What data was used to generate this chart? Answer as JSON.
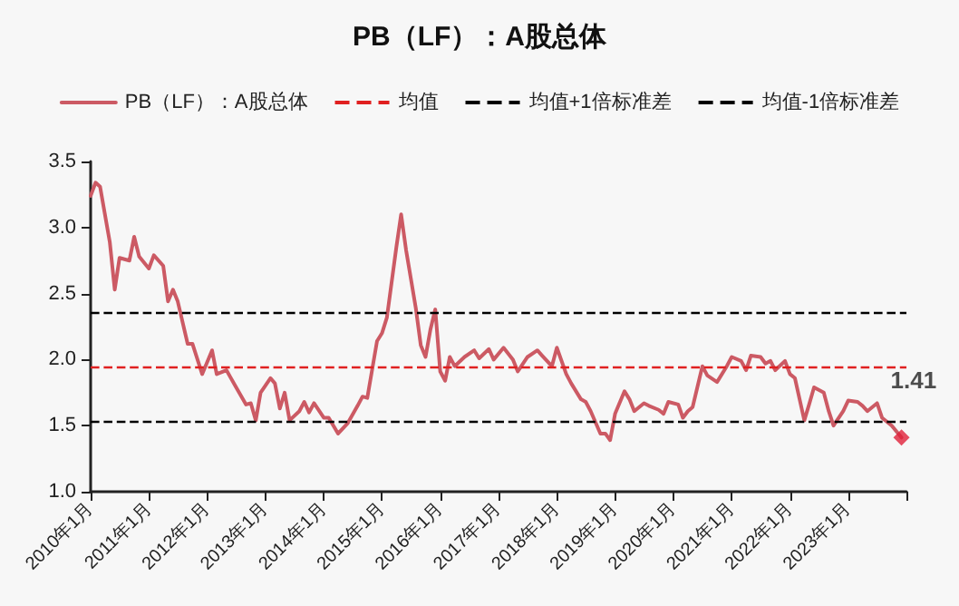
{
  "chart_data": {
    "type": "line",
    "title": "PB（LF）：A股总体",
    "series": [
      {
        "name": "PB（LF）：A股总体",
        "color": "#cc5a64",
        "line_style": "solid",
        "marker": "none",
        "x": [
          "2010-01",
          "2010-02",
          "2010-03",
          "2010-05",
          "2010-06",
          "2010-07",
          "2010-09",
          "2010-10",
          "2010-11",
          "2011-01",
          "2011-02",
          "2011-04",
          "2011-05",
          "2011-06",
          "2011-07",
          "2011-09",
          "2011-10",
          "2011-12",
          "2012-02",
          "2012-03",
          "2012-05",
          "2012-07",
          "2012-09",
          "2012-10",
          "2012-11",
          "2012-12",
          "2013-02",
          "2013-03",
          "2013-04",
          "2013-05",
          "2013-06",
          "2013-08",
          "2013-09",
          "2013-10",
          "2013-11",
          "2014-01",
          "2014-02",
          "2014-04",
          "2014-06",
          "2014-08",
          "2014-09",
          "2014-10",
          "2014-12",
          "2015-01",
          "2015-02",
          "2015-04",
          "2015-05",
          "2015-06",
          "2015-08",
          "2015-09",
          "2015-10",
          "2015-11",
          "2015-12",
          "2016-01",
          "2016-02",
          "2016-03",
          "2016-04",
          "2016-06",
          "2016-08",
          "2016-09",
          "2016-11",
          "2016-12",
          "2017-02",
          "2017-04",
          "2017-05",
          "2017-07",
          "2017-09",
          "2017-10",
          "2017-12",
          "2018-01",
          "2018-03",
          "2018-04",
          "2018-06",
          "2018-07",
          "2018-08",
          "2018-10",
          "2018-11",
          "2018-12",
          "2019-01",
          "2019-03",
          "2019-04",
          "2019-05",
          "2019-07",
          "2019-08",
          "2019-10",
          "2019-11",
          "2019-12",
          "2020-02",
          "2020-03",
          "2020-04",
          "2020-05",
          "2020-07",
          "2020-08",
          "2020-10",
          "2020-12",
          "2021-01",
          "2021-03",
          "2021-04",
          "2021-05",
          "2021-07",
          "2021-08",
          "2021-09",
          "2021-10",
          "2021-12",
          "2022-01",
          "2022-02",
          "2022-04",
          "2022-05",
          "2022-06",
          "2022-08",
          "2022-09",
          "2022-10",
          "2022-12",
          "2023-01",
          "2023-03",
          "2023-04",
          "2023-05",
          "2023-07",
          "2023-08",
          "2023-10",
          "2023-12"
        ],
        "values": [
          3.24,
          3.34,
          3.31,
          2.89,
          2.53,
          2.77,
          2.75,
          2.93,
          2.78,
          2.69,
          2.79,
          2.71,
          2.44,
          2.53,
          2.44,
          2.12,
          2.12,
          1.89,
          2.07,
          1.89,
          1.92,
          1.79,
          1.66,
          1.67,
          1.54,
          1.75,
          1.86,
          1.82,
          1.63,
          1.75,
          1.54,
          1.61,
          1.68,
          1.6,
          1.67,
          1.56,
          1.56,
          1.44,
          1.52,
          1.65,
          1.72,
          1.71,
          2.14,
          2.2,
          2.32,
          2.85,
          3.1,
          2.83,
          2.39,
          2.11,
          2.02,
          2.23,
          2.38,
          1.91,
          1.84,
          2.02,
          1.95,
          2.02,
          2.07,
          2.01,
          2.08,
          2.0,
          2.09,
          2.0,
          1.91,
          2.02,
          2.07,
          2.03,
          1.95,
          2.09,
          1.89,
          1.82,
          1.7,
          1.68,
          1.61,
          1.44,
          1.44,
          1.39,
          1.59,
          1.76,
          1.7,
          1.61,
          1.67,
          1.65,
          1.62,
          1.59,
          1.68,
          1.66,
          1.56,
          1.61,
          1.64,
          1.95,
          1.88,
          1.83,
          1.95,
          2.02,
          1.99,
          1.92,
          2.03,
          2.02,
          1.97,
          1.99,
          1.92,
          1.99,
          1.89,
          1.86,
          1.54,
          1.66,
          1.79,
          1.75,
          1.61,
          1.5,
          1.61,
          1.69,
          1.68,
          1.65,
          1.61,
          1.67,
          1.56,
          1.5,
          1.41
        ]
      },
      {
        "type": "scatter",
        "color": "#e0203a",
        "marker": "diamond",
        "x": [
          "2023-12"
        ],
        "values": [
          1.41
        ]
      }
    ],
    "ref_lines": [
      {
        "axis": "y",
        "value": 1.94,
        "label": "均值",
        "color": "#e02020",
        "line_style": "dashed"
      },
      {
        "axis": "y",
        "value": 2.36,
        "label": "均值+1倍标准差",
        "color": "#000000",
        "line_style": "dashed"
      },
      {
        "axis": "y",
        "value": 1.53,
        "label": "均值-1倍标准差",
        "color": "#000000",
        "line_style": "dashed"
      }
    ],
    "annotations": [
      {
        "text": "1.41",
        "x": "2023-12",
        "y": 1.41
      }
    ],
    "xlim": [
      "2010-01",
      "2024-01"
    ],
    "xticks": [
      {
        "value": "2010-01",
        "label": "2010年1月"
      },
      {
        "value": "2011-01",
        "label": "2011年1月"
      },
      {
        "value": "2012-01",
        "label": "2012年1月"
      },
      {
        "value": "2013-01",
        "label": "2013年1月"
      },
      {
        "value": "2014-01",
        "label": "2014年1月"
      },
      {
        "value": "2015-01",
        "label": "2015年1月"
      },
      {
        "value": "2016-01",
        "label": "2016年1月"
      },
      {
        "value": "2017-01",
        "label": "2017年1月"
      },
      {
        "value": "2018-01",
        "label": "2018年1月"
      },
      {
        "value": "2019-01",
        "label": "2019年1月"
      },
      {
        "value": "2020-01",
        "label": "2020年1月"
      },
      {
        "value": "2021-01",
        "label": "2021年1月"
      },
      {
        "value": "2022-01",
        "label": "2022年1月"
      },
      {
        "value": "2023-01",
        "label": "2023年1月"
      }
    ],
    "ylim": [
      1,
      3.5
    ],
    "yticks": [
      {
        "value": 1,
        "label": "1.0"
      },
      {
        "value": 1.5,
        "label": "1.5"
      },
      {
        "value": 2,
        "label": "2.0"
      },
      {
        "value": 2.5,
        "label": "2.5"
      },
      {
        "value": 3,
        "label": "3.0"
      },
      {
        "value": 3.5,
        "label": "3.5"
      }
    ],
    "grid": false,
    "legend": "top"
  }
}
